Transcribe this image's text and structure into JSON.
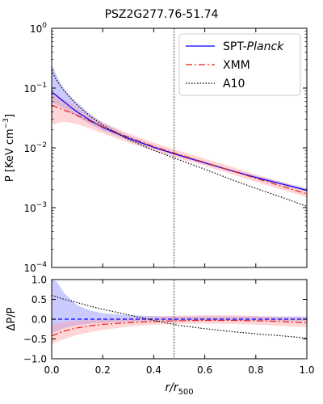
{
  "chart_data": [
    {
      "type": "line",
      "title": "PSZ2G277.76-51.74",
      "xlabel": "",
      "ylabel": "P [KeV cm$^{-3}$]",
      "ylabel_parts": {
        "main": "P [KeV cm",
        "sup": "−3",
        "end": "]"
      },
      "xlim": [
        0,
        1
      ],
      "ylim": [
        0.0001,
        1
      ],
      "yscale": "log",
      "yticks": [
        {
          "value": 0.0001,
          "base": "10",
          "exp": "−4"
        },
        {
          "value": 0.001,
          "base": "10",
          "exp": "−3"
        },
        {
          "value": 0.01,
          "base": "10",
          "exp": "−2"
        },
        {
          "value": 0.1,
          "base": "10",
          "exp": "−1"
        },
        {
          "value": 1,
          "base": "10",
          "exp": "0"
        }
      ],
      "vline": 0.48,
      "legend_position": "top-right",
      "legend": [
        {
          "pre": "SPT-",
          "italic": "Planck",
          "color": "#0000ff",
          "style": "solid"
        },
        {
          "pre": "XMM",
          "italic": "",
          "color": "#e41a1c",
          "style": "dashdot"
        },
        {
          "pre": "A10",
          "italic": "",
          "color": "#000000",
          "style": "dotted"
        }
      ],
      "series": [
        {
          "name": "SPT-Planck",
          "color": "#0000ff",
          "fill": "#7b7bff",
          "x": [
            0.0,
            0.01,
            0.02,
            0.04,
            0.06,
            0.08,
            0.1,
            0.15,
            0.2,
            0.3,
            0.4,
            0.5,
            0.6,
            0.7,
            0.8,
            0.9,
            1.0
          ],
          "y": [
            0.085,
            0.08,
            0.074,
            0.063,
            0.054,
            0.046,
            0.04,
            0.029,
            0.022,
            0.0145,
            0.0102,
            0.0075,
            0.0056,
            0.0042,
            0.0032,
            0.0025,
            0.00195
          ],
          "lower": [
            0.055,
            0.055,
            0.053,
            0.047,
            0.042,
            0.037,
            0.033,
            0.025,
            0.0195,
            0.0135,
            0.0097,
            0.0072,
            0.0054,
            0.0041,
            0.0031,
            0.0024,
            0.00185
          ],
          "upper": [
            0.25,
            0.2,
            0.16,
            0.11,
            0.085,
            0.068,
            0.057,
            0.037,
            0.026,
            0.016,
            0.011,
            0.0079,
            0.0059,
            0.0044,
            0.0034,
            0.0027,
            0.0021
          ]
        },
        {
          "name": "XMM",
          "color": "#e41a1c",
          "fill": "#ff9999",
          "x": [
            0.0,
            0.01,
            0.02,
            0.04,
            0.06,
            0.08,
            0.1,
            0.15,
            0.2,
            0.3,
            0.4,
            0.5,
            0.6,
            0.7,
            0.8,
            0.9,
            1.0
          ],
          "y": [
            0.052,
            0.05,
            0.048,
            0.044,
            0.041,
            0.038,
            0.035,
            0.028,
            0.0225,
            0.015,
            0.0105,
            0.0077,
            0.0057,
            0.0042,
            0.0031,
            0.0023,
            0.0017
          ],
          "lower": [
            0.028,
            0.024,
            0.026,
            0.027,
            0.027,
            0.026,
            0.025,
            0.021,
            0.0175,
            0.0122,
            0.0089,
            0.0066,
            0.005,
            0.0037,
            0.0027,
            0.002,
            0.0015
          ],
          "upper": [
            0.09,
            0.085,
            0.078,
            0.068,
            0.06,
            0.053,
            0.047,
            0.035,
            0.027,
            0.0175,
            0.0122,
            0.0089,
            0.0066,
            0.0049,
            0.0036,
            0.0027,
            0.002
          ]
        },
        {
          "name": "A10",
          "color": "#000000",
          "fill": "",
          "x": [
            0.0,
            0.01,
            0.02,
            0.04,
            0.06,
            0.08,
            0.1,
            0.15,
            0.2,
            0.3,
            0.4,
            0.5,
            0.6,
            0.7,
            0.8,
            0.9,
            1.0
          ],
          "y": [
            0.2,
            0.16,
            0.135,
            0.1,
            0.08,
            0.064,
            0.052,
            0.034,
            0.024,
            0.0138,
            0.0091,
            0.0063,
            0.0044,
            0.003,
            0.0021,
            0.0015,
            0.00105
          ]
        }
      ]
    },
    {
      "type": "line",
      "title": "",
      "xlabel": "r/r_500",
      "xlabel_parts": {
        "main": "r/r",
        "sub": "500"
      },
      "ylabel": "ΔP/P",
      "xlim": [
        0,
        1
      ],
      "ylim": [
        -1,
        1
      ],
      "xticks": [
        {
          "value": 0,
          "label": "0.0"
        },
        {
          "value": 0.2,
          "label": "0.2"
        },
        {
          "value": 0.4,
          "label": "0.4"
        },
        {
          "value": 0.6,
          "label": "0.6"
        },
        {
          "value": 0.8,
          "label": "0.8"
        },
        {
          "value": 1,
          "label": "1.0"
        }
      ],
      "yticks": [
        {
          "value": -1,
          "label": "−1.0"
        },
        {
          "value": -0.5,
          "label": "−0.5"
        },
        {
          "value": 0,
          "label": "0.0"
        },
        {
          "value": 0.5,
          "label": "0.5"
        },
        {
          "value": 1,
          "label": "1.0"
        }
      ],
      "vline": 0.48,
      "series": [
        {
          "name": "SPT-Planck",
          "color": "#0000ff",
          "fill": "#7b7bff",
          "style": "dashed",
          "x": [
            0.0,
            0.02,
            0.05,
            0.1,
            0.15,
            0.2,
            0.3,
            0.4,
            0.5,
            0.6,
            0.7,
            0.8,
            0.9,
            1.0
          ],
          "y": [
            0.0,
            0.0,
            0.0,
            0.0,
            0.0,
            0.0,
            0.0,
            0.0,
            0.0,
            0.0,
            0.0,
            0.0,
            0.0,
            0.0
          ],
          "lower": [
            -0.35,
            -0.3,
            -0.22,
            -0.15,
            -0.11,
            -0.09,
            -0.07,
            -0.05,
            -0.04,
            -0.04,
            -0.04,
            -0.04,
            -0.04,
            -0.04
          ],
          "upper": [
            1.0,
            0.95,
            0.65,
            0.35,
            0.22,
            0.15,
            0.1,
            0.08,
            0.07,
            0.07,
            0.07,
            0.07,
            0.07,
            0.07
          ]
        },
        {
          "name": "XMM",
          "color": "#e41a1c",
          "fill": "#ff9999",
          "style": "dashdot",
          "x": [
            0.0,
            0.01,
            0.03,
            0.05,
            0.08,
            0.1,
            0.15,
            0.2,
            0.3,
            0.4,
            0.5,
            0.6,
            0.7,
            0.8,
            0.9,
            1.0
          ],
          "y": [
            -0.42,
            -0.4,
            -0.34,
            -0.3,
            -0.25,
            -0.22,
            -0.17,
            -0.13,
            -0.09,
            -0.06,
            -0.04,
            -0.03,
            -0.03,
            -0.04,
            -0.06,
            -0.09
          ],
          "lower": [
            -0.65,
            -0.6,
            -0.55,
            -0.5,
            -0.44,
            -0.4,
            -0.33,
            -0.27,
            -0.19,
            -0.14,
            -0.12,
            -0.11,
            -0.12,
            -0.14,
            -0.17,
            -0.2
          ],
          "upper": [
            -0.15,
            -0.13,
            -0.1,
            -0.08,
            -0.05,
            -0.04,
            -0.02,
            0.0,
            0.03,
            0.06,
            0.09,
            0.1,
            0.1,
            0.08,
            0.05,
            0.02
          ]
        },
        {
          "name": "A10",
          "color": "#000000",
          "style": "dotted",
          "x": [
            0.0,
            0.02,
            0.05,
            0.1,
            0.15,
            0.2,
            0.3,
            0.4,
            0.5,
            0.6,
            0.7,
            0.8,
            0.9,
            1.0
          ],
          "y": [
            0.6,
            0.56,
            0.5,
            0.42,
            0.33,
            0.25,
            0.11,
            -0.03,
            -0.16,
            -0.24,
            -0.31,
            -0.37,
            -0.42,
            -0.48
          ]
        }
      ]
    }
  ]
}
